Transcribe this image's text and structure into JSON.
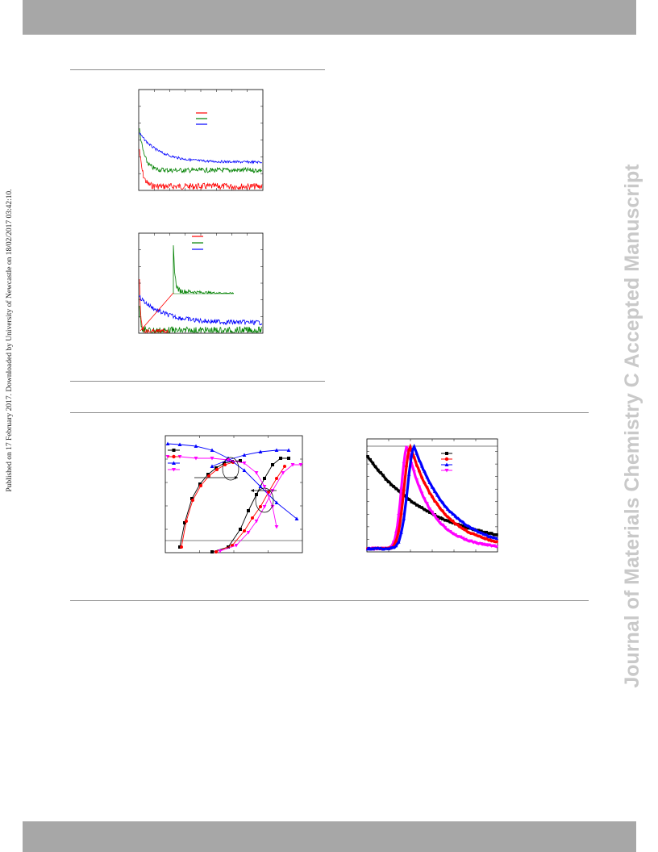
{
  "header": {},
  "sidebar": {
    "journal_title": "Journal of Materials Chemistry C Accepted Manuscript"
  },
  "margin_note": {
    "text": "Published on 17 February 2017. Downloaded by University of Newcastle on 18/02/2017 03:42:10."
  },
  "colors": {
    "red": "#ff0000",
    "green": "#008000",
    "blue": "#0000ff",
    "black": "#000000",
    "magenta": "#ff00ff",
    "bar_gray": "#a7a7a7",
    "sidebar_gray": "#c9c9c9"
  },
  "chart_data": [
    {
      "type": "line",
      "series": [
        {
          "color": "red",
          "shape": "fast decay to low plateau with high noise"
        },
        {
          "color": "green",
          "shape": "decay to middle plateau"
        },
        {
          "color": "blue",
          "shape": "slow decay, highest plateau"
        }
      ],
      "grid": false
    },
    {
      "type": "line",
      "series": [
        {
          "color": "red",
          "shape": "sharp spike near origin"
        },
        {
          "color": "green",
          "shape": "sharp spike near origin, noisy tail"
        },
        {
          "color": "blue",
          "shape": "slow decay, noisy"
        }
      ],
      "inset": {
        "series": [
          "green"
        ],
        "shape": "zoom of early-time spike"
      },
      "grid": false
    },
    {
      "type": "line",
      "series": [
        {
          "color": "black",
          "marker": "square"
        },
        {
          "color": "red",
          "marker": "circle"
        },
        {
          "color": "blue",
          "marker": "triangle-up"
        },
        {
          "color": "magenta",
          "marker": "triangle-down"
        }
      ],
      "annotations": [
        "two circled curve groups with arrows to opposite axes"
      ],
      "grid": false
    },
    {
      "type": "line",
      "series": [
        {
          "color": "black",
          "marker": "square",
          "shape": "monotonic decay"
        },
        {
          "color": "red",
          "marker": "circle",
          "shape": "peak then decay"
        },
        {
          "color": "blue",
          "marker": "triangle-up",
          "shape": "peak then decay, slightly later"
        },
        {
          "color": "magenta",
          "marker": "triangle-down",
          "shape": "earliest peak, steep decay"
        }
      ],
      "grid": false
    }
  ]
}
